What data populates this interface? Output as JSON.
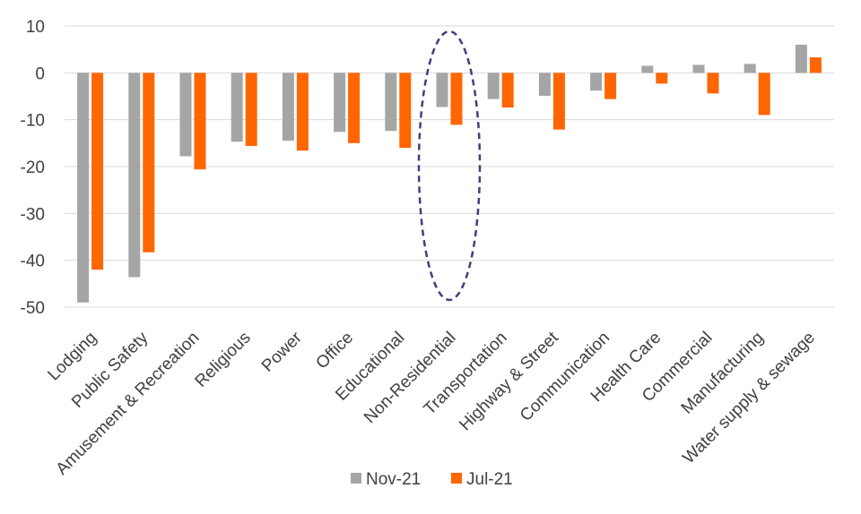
{
  "chart_data": {
    "type": "bar",
    "categories": [
      "Lodging",
      "Public Safety",
      "Amusement & Recreation",
      "Religious",
      "Power",
      "Office",
      "Educational",
      "Non-Residential",
      "Transportation",
      "Highway & Street",
      "Communication",
      "Health Care",
      "Commercial",
      "Manufacturing",
      "Water supply & sewage"
    ],
    "series": [
      {
        "name": "Nov-21",
        "color": "#a5a5a5",
        "values": [
          -49.0,
          -43.6,
          -17.8,
          -14.7,
          -14.5,
          -12.6,
          -12.4,
          -7.3,
          -5.6,
          -4.9,
          -3.8,
          1.5,
          1.7,
          1.9,
          6.0
        ]
      },
      {
        "name": "Jul-21",
        "color": "#ff6600",
        "values": [
          -42.0,
          -38.3,
          -20.6,
          -15.6,
          -16.6,
          -15.0,
          -16.0,
          -11.1,
          -7.4,
          -12.1,
          -5.6,
          -2.3,
          -4.4,
          -9.0,
          3.3
        ]
      }
    ],
    "ylim": [
      -50,
      10
    ],
    "yticks": [
      10,
      0,
      -10,
      -20,
      -30,
      -40,
      -50
    ],
    "grid": true,
    "legend_position": "bottom",
    "highlight_category": "Non-Residential",
    "highlight_style": "dashed ellipse",
    "highlight_color": "#3f3f7f",
    "title": "",
    "xlabel": "",
    "ylabel": ""
  }
}
